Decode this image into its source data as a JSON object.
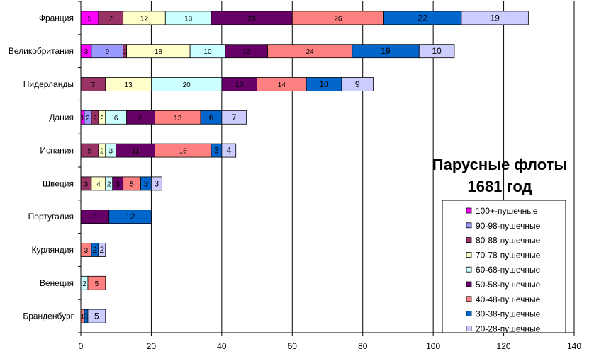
{
  "chart_data": {
    "type": "bar",
    "orientation": "horizontal",
    "stacked": true,
    "title_lines": [
      "Парусные флоты",
      "1681 год"
    ],
    "xlim": [
      0,
      140
    ],
    "x_ticks": [
      "0",
      "20",
      "40",
      "60",
      "80",
      "100",
      "120",
      "140"
    ],
    "gridlines": "vertical",
    "legend_position": "bottom-right",
    "categories": [
      "Франция",
      "Великобритания",
      "Нидерланды",
      "Дания",
      "Испания",
      "Швеция",
      "Португалия",
      "Курляндия",
      "Венеция",
      "Бранденбург"
    ],
    "series": [
      {
        "name": "100+-пушечные",
        "color": "#ff00ff",
        "label_color": "#ffffff",
        "values": [
          5,
          3,
          0,
          1,
          0,
          0,
          0,
          0,
          0,
          0
        ]
      },
      {
        "name": "90-98-пушечные",
        "color": "#9999ff",
        "label_color": "#000000",
        "values": [
          0,
          9,
          0,
          2,
          0,
          0,
          0,
          0,
          0,
          0
        ]
      },
      {
        "name": "80-88-пушечные",
        "color": "#993366",
        "label_color": "#ffffff",
        "values": [
          7,
          1,
          7,
          2,
          5,
          3,
          0,
          0,
          0,
          0
        ]
      },
      {
        "name": "70-78-пушечные",
        "color": "#ffffcc",
        "label_color": "#000000",
        "values": [
          12,
          18,
          13,
          2,
          2,
          4,
          0,
          0,
          0,
          0
        ]
      },
      {
        "name": "60-68-пушечные",
        "color": "#ccffff",
        "label_color": "#000000",
        "values": [
          13,
          10,
          20,
          6,
          3,
          2,
          0,
          0,
          2,
          0
        ]
      },
      {
        "name": "50-58-пушечные",
        "color": "#660066",
        "label_color": "#ffffff",
        "values": [
          23,
          12,
          10,
          8,
          11,
          3,
          8,
          0,
          0,
          0
        ]
      },
      {
        "name": "40-48-пушечные",
        "color": "#ff8080",
        "label_color": "#000000",
        "values": [
          26,
          24,
          14,
          13,
          16,
          5,
          0,
          3,
          5,
          1
        ]
      },
      {
        "name": "30-38-пушечные",
        "color": "#0066cc",
        "label_color": "#000000",
        "values": [
          22,
          19,
          10,
          6,
          3,
          3,
          12,
          2,
          0,
          1
        ]
      },
      {
        "name": "20-28-пушечные",
        "color": "#ccccff",
        "label_color": "#000000",
        "values": [
          19,
          10,
          9,
          7,
          4,
          3,
          0,
          2,
          0,
          5
        ]
      }
    ]
  }
}
